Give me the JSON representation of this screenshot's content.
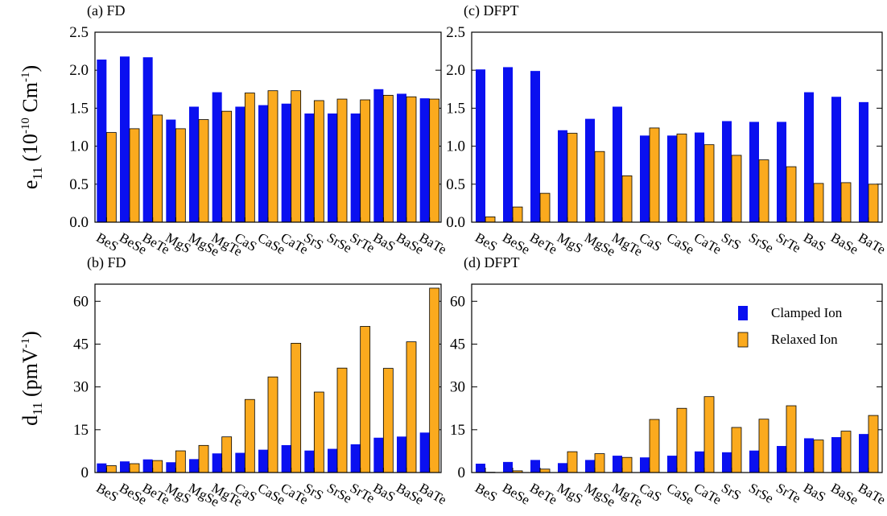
{
  "colors": {
    "clamped": "#0a10f0",
    "relaxed": "#fbaa1e"
  },
  "legend": {
    "clamped": "Clamped Ion",
    "relaxed": "Relaxed Ion"
  },
  "chart_data": [
    {
      "id": "a",
      "type": "bar",
      "title": "(a) FD",
      "ylabel": {
        "main": "e",
        "sub": "11",
        "open": " (10",
        "sup": "-10",
        "close": " Cm",
        "sup2": "-1",
        "end": ")"
      },
      "ylim": [
        0,
        2.5
      ],
      "yticks": [
        "0.0",
        "0.5",
        "1.0",
        "1.5",
        "2.0",
        "2.5"
      ],
      "categories": [
        "BeS",
        "BeSe",
        "BeTe",
        "MgS",
        "MgSe",
        "MgTe",
        "CaS",
        "CaSe",
        "CaTe",
        "SrS",
        "SrSe",
        "SrTe",
        "BaS",
        "BaSe",
        "BaTe"
      ],
      "series": [
        {
          "name": "Clamped Ion",
          "values": [
            2.14,
            2.18,
            2.17,
            1.35,
            1.52,
            1.71,
            1.52,
            1.54,
            1.56,
            1.43,
            1.43,
            1.43,
            1.75,
            1.69,
            1.63
          ]
        },
        {
          "name": "Relaxed Ion",
          "values": [
            1.18,
            1.23,
            1.41,
            1.23,
            1.35,
            1.46,
            1.7,
            1.73,
            1.73,
            1.6,
            1.62,
            1.61,
            1.67,
            1.65,
            1.62
          ]
        }
      ],
      "legend": false
    },
    {
      "id": "c",
      "type": "bar",
      "title": "(c) DFPT",
      "ylim": [
        0,
        2.5
      ],
      "yticks": [
        "0.0",
        "0.5",
        "1.0",
        "1.5",
        "2.0",
        "2.5"
      ],
      "categories": [
        "BeS",
        "BeSe",
        "BeTe",
        "MgS",
        "MgSe",
        "MgTe",
        "CaS",
        "CaSe",
        "CaTe",
        "SrS",
        "SrSe",
        "SrTe",
        "BaS",
        "BaSe",
        "BaTe"
      ],
      "series": [
        {
          "name": "Clamped Ion",
          "values": [
            2.01,
            2.04,
            1.99,
            1.21,
            1.36,
            1.52,
            1.14,
            1.14,
            1.18,
            1.33,
            1.32,
            1.32,
            1.71,
            1.65,
            1.58
          ]
        },
        {
          "name": "Relaxed Ion",
          "values": [
            0.07,
            0.2,
            0.38,
            1.17,
            0.93,
            0.61,
            1.24,
            1.16,
            1.02,
            0.88,
            0.82,
            0.73,
            0.51,
            0.52,
            0.5
          ]
        }
      ],
      "legend": false
    },
    {
      "id": "b",
      "type": "bar",
      "title": "(b) FD",
      "ylabel": {
        "main": "d",
        "sub": "11",
        "open": " (pmV",
        "sup": "-1",
        "close": ")"
      },
      "ylim": [
        0,
        66
      ],
      "yticks": [
        "0",
        "15",
        "30",
        "45",
        "60"
      ],
      "categories": [
        "BeS",
        "BeSe",
        "BeTe",
        "MgS",
        "MgSe",
        "MgTe",
        "CaS",
        "CaSe",
        "CaTe",
        "SrS",
        "SrSe",
        "SrTe",
        "BaS",
        "BaSe",
        "BaTe"
      ],
      "series": [
        {
          "name": "Clamped Ion",
          "values": [
            3.2,
            3.9,
            4.6,
            3.6,
            4.7,
            6.7,
            6.9,
            8.0,
            9.6,
            7.7,
            8.3,
            9.9,
            12.2,
            12.6,
            14.0
          ]
        },
        {
          "name": "Relaxed Ion",
          "values": [
            2.4,
            3.1,
            4.2,
            7.6,
            9.5,
            12.5,
            25.6,
            33.5,
            45.3,
            28.2,
            36.6,
            51.2,
            36.5,
            45.8,
            64.6
          ]
        }
      ],
      "legend": false
    },
    {
      "id": "d",
      "type": "bar",
      "title": "(d) DFPT",
      "ylim": [
        0,
        66
      ],
      "yticks": [
        "0",
        "15",
        "30",
        "45",
        "60"
      ],
      "categories": [
        "BeS",
        "BeSe",
        "BeTe",
        "MgS",
        "MgSe",
        "MgTe",
        "CaS",
        "CaSe",
        "CaTe",
        "SrS",
        "SrSe",
        "SrTe",
        "BaS",
        "BaSe",
        "BaTe"
      ],
      "series": [
        {
          "name": "Clamped Ion",
          "values": [
            3.1,
            3.7,
            4.4,
            3.3,
            4.4,
            5.9,
            5.3,
            5.9,
            7.4,
            7.1,
            7.7,
            9.3,
            12.0,
            12.4,
            13.5
          ]
        },
        {
          "name": "Relaxed Ion",
          "values": [
            0.1,
            0.6,
            1.2,
            7.3,
            6.6,
            5.3,
            18.6,
            22.5,
            26.6,
            15.8,
            18.7,
            23.4,
            11.4,
            14.5,
            20.0
          ]
        }
      ],
      "legend": true
    }
  ]
}
